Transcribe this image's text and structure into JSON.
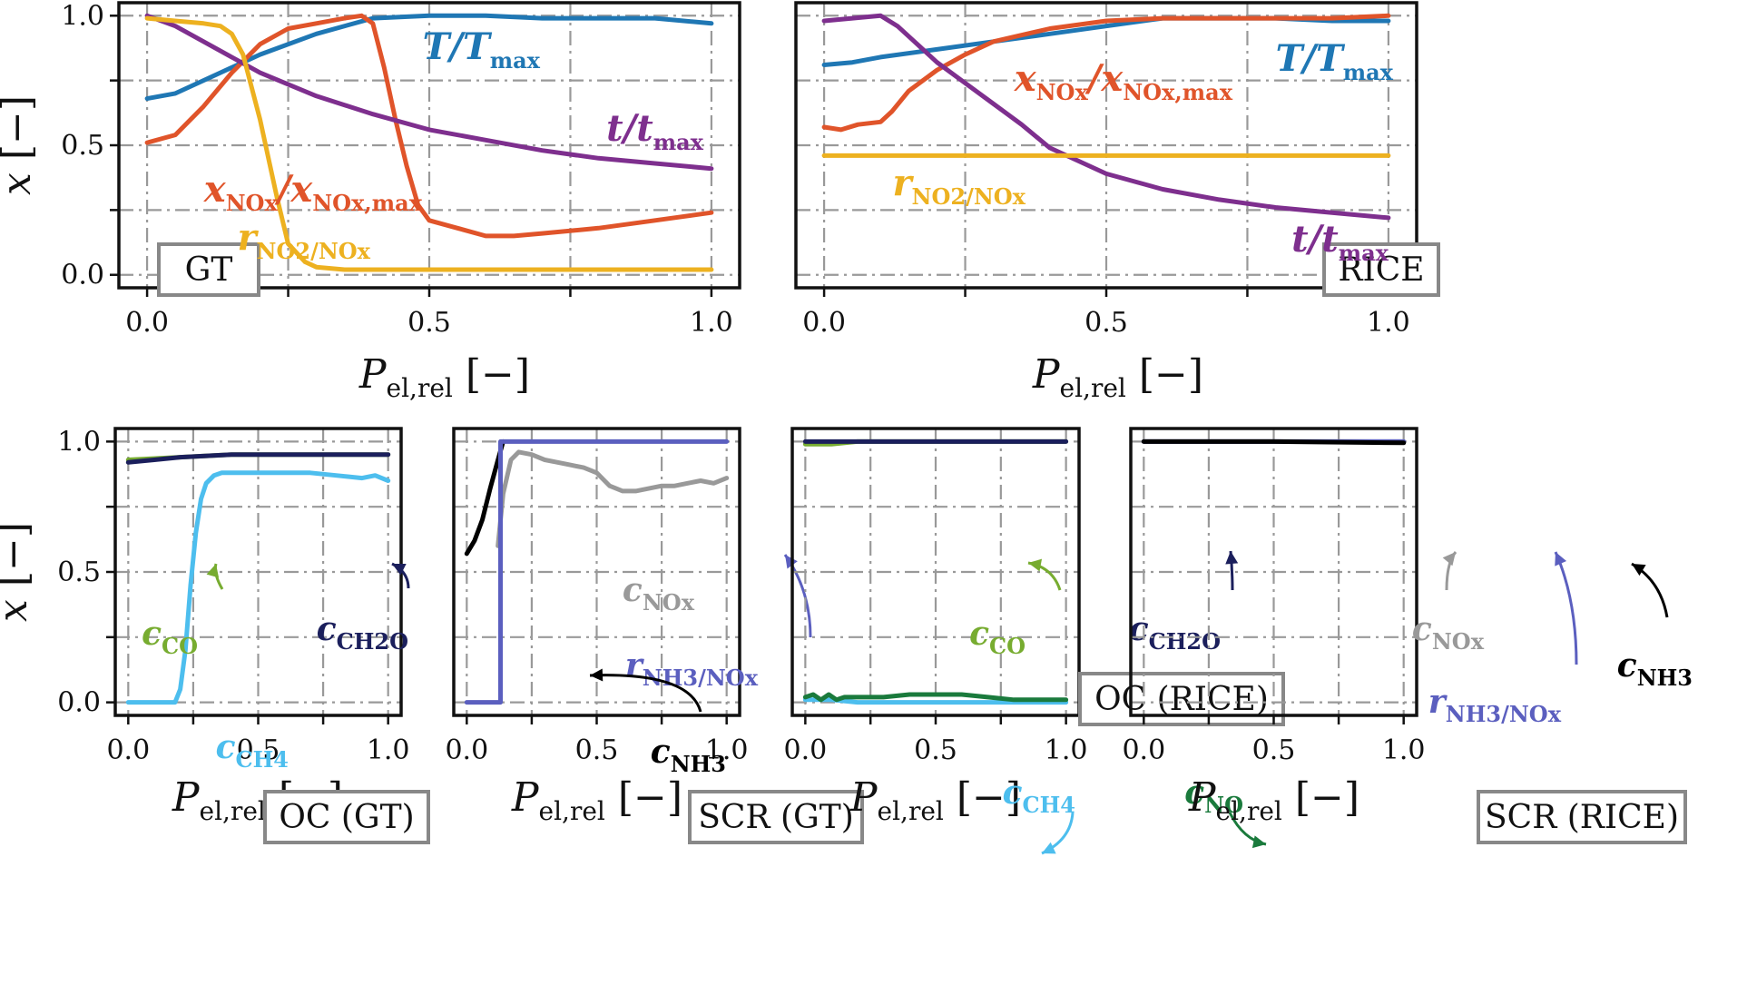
{
  "colors": {
    "T": "#1f77b4",
    "NOx": "#e0542a",
    "t": "#7e2f8e",
    "rNO2": "#edb120",
    "cCO": "#77ac30",
    "cCH2O": "#1b1f5c",
    "cCH4": "#4dbeee",
    "NH3": "#000000",
    "cNOx": "#999999",
    "rNH3": "#5b5fbf",
    "cNO": "#1a7a3c"
  },
  "axes": {
    "xlabel_main": "P",
    "xlabel_sub": "el,rel",
    "xlabel_unit": "[−]",
    "ylabel_main": "x",
    "ylabel_unit": "[−]",
    "xticks": [
      "0.0",
      "0.5",
      "1.0"
    ],
    "yticks": [
      "0.0",
      "0.5",
      "1.0"
    ]
  },
  "chart_data": [
    {
      "type": "line",
      "panel": "GT",
      "xlim": [
        -0.05,
        1.05
      ],
      "ylim": [
        -0.05,
        1.05
      ],
      "grid": true,
      "box_label": "GT",
      "series": [
        {
          "key": "T",
          "name_main": "T/T",
          "name_sub": "max",
          "x": [
            0,
            0.05,
            0.1,
            0.2,
            0.3,
            0.4,
            0.5,
            0.6,
            0.7,
            0.8,
            0.9,
            1.0
          ],
          "y": [
            0.68,
            0.7,
            0.75,
            0.85,
            0.93,
            0.99,
            1.0,
            1.0,
            0.99,
            0.99,
            0.99,
            0.97
          ]
        },
        {
          "key": "NOx",
          "name_main": "x",
          "name_sub": "NOx",
          "name_tail": "/x",
          "name_sub2": "NOx,max",
          "x": [
            0,
            0.05,
            0.1,
            0.15,
            0.2,
            0.25,
            0.3,
            0.35,
            0.38,
            0.4,
            0.42,
            0.44,
            0.46,
            0.48,
            0.5,
            0.55,
            0.6,
            0.65,
            0.7,
            0.8,
            0.9,
            1.0
          ],
          "y": [
            0.51,
            0.54,
            0.65,
            0.78,
            0.89,
            0.95,
            0.97,
            0.99,
            1.0,
            0.97,
            0.8,
            0.6,
            0.42,
            0.27,
            0.21,
            0.18,
            0.15,
            0.15,
            0.16,
            0.18,
            0.21,
            0.24
          ]
        },
        {
          "key": "t",
          "name_main": "t/t",
          "name_sub": "max",
          "x": [
            0,
            0.05,
            0.1,
            0.2,
            0.3,
            0.4,
            0.5,
            0.6,
            0.7,
            0.8,
            0.9,
            1.0
          ],
          "y": [
            1.0,
            0.96,
            0.9,
            0.78,
            0.69,
            0.62,
            0.56,
            0.52,
            0.48,
            0.45,
            0.43,
            0.41
          ]
        },
        {
          "key": "rNO2",
          "name_main": "r",
          "name_sub": "NO2/NOx",
          "x": [
            0,
            0.05,
            0.1,
            0.13,
            0.15,
            0.17,
            0.2,
            0.23,
            0.25,
            0.28,
            0.3,
            0.35,
            0.4,
            0.5,
            0.6,
            0.7,
            0.8,
            0.9,
            1.0
          ],
          "y": [
            0.99,
            0.98,
            0.97,
            0.96,
            0.93,
            0.85,
            0.6,
            0.3,
            0.12,
            0.05,
            0.03,
            0.02,
            0.02,
            0.02,
            0.02,
            0.02,
            0.02,
            0.02,
            0.02
          ]
        }
      ]
    },
    {
      "type": "line",
      "panel": "RICE",
      "xlim": [
        -0.05,
        1.05
      ],
      "ylim": [
        -0.05,
        1.05
      ],
      "grid": true,
      "box_label": "RICE",
      "series": [
        {
          "key": "T",
          "name_main": "T/T",
          "name_sub": "max",
          "x": [
            0,
            0.05,
            0.1,
            0.2,
            0.3,
            0.4,
            0.5,
            0.6,
            0.7,
            0.8,
            0.9,
            1.0
          ],
          "y": [
            0.81,
            0.82,
            0.84,
            0.87,
            0.9,
            0.93,
            0.96,
            0.99,
            0.99,
            0.99,
            0.98,
            0.98
          ]
        },
        {
          "key": "NOx",
          "name_main": "x",
          "name_sub": "NOx",
          "name_tail": "/x",
          "name_sub2": "NOx,max",
          "x": [
            0,
            0.03,
            0.06,
            0.1,
            0.12,
            0.15,
            0.2,
            0.25,
            0.3,
            0.4,
            0.5,
            0.6,
            0.7,
            0.8,
            0.9,
            1.0
          ],
          "y": [
            0.57,
            0.56,
            0.58,
            0.59,
            0.63,
            0.71,
            0.79,
            0.85,
            0.9,
            0.95,
            0.98,
            0.99,
            0.99,
            0.99,
            0.99,
            1.0
          ]
        },
        {
          "key": "t",
          "name_main": "t/t",
          "name_sub": "max",
          "x": [
            0,
            0.05,
            0.1,
            0.13,
            0.16,
            0.2,
            0.25,
            0.3,
            0.35,
            0.4,
            0.5,
            0.6,
            0.7,
            0.8,
            0.9,
            1.0
          ],
          "y": [
            0.98,
            0.99,
            1.0,
            0.96,
            0.9,
            0.82,
            0.74,
            0.66,
            0.58,
            0.49,
            0.39,
            0.33,
            0.29,
            0.26,
            0.24,
            0.22
          ]
        },
        {
          "key": "rNO2",
          "name_main": "r",
          "name_sub": "NO2/NOx",
          "x": [
            0,
            0.2,
            0.4,
            0.6,
            0.8,
            1.0
          ],
          "y": [
            0.46,
            0.46,
            0.46,
            0.46,
            0.46,
            0.46
          ]
        }
      ]
    },
    {
      "type": "line",
      "panel": "OC (GT)",
      "xlim": [
        -0.05,
        1.05
      ],
      "ylim": [
        -0.05,
        1.05
      ],
      "grid": true,
      "box_label": "OC (GT)",
      "series": [
        {
          "key": "cCO",
          "name_main": "c",
          "name_sub": "CO",
          "x": [
            0,
            0.2,
            0.4,
            0.6,
            0.8,
            1.0
          ],
          "y": [
            0.93,
            0.94,
            0.95,
            0.95,
            0.95,
            0.95
          ]
        },
        {
          "key": "cCH2O",
          "name_main": "c",
          "name_sub": "CH2O",
          "x": [
            0,
            0.1,
            0.2,
            0.4,
            0.6,
            0.8,
            1.0
          ],
          "y": [
            0.92,
            0.93,
            0.94,
            0.95,
            0.95,
            0.95,
            0.95
          ]
        },
        {
          "key": "cCH4",
          "name_main": "c",
          "name_sub": "CH4",
          "x": [
            0,
            0.1,
            0.18,
            0.2,
            0.22,
            0.24,
            0.26,
            0.28,
            0.3,
            0.33,
            0.36,
            0.4,
            0.5,
            0.6,
            0.7,
            0.8,
            0.9,
            0.95,
            1.0
          ],
          "y": [
            0,
            0,
            0.0,
            0.05,
            0.2,
            0.45,
            0.65,
            0.78,
            0.84,
            0.87,
            0.88,
            0.88,
            0.88,
            0.88,
            0.88,
            0.87,
            0.86,
            0.87,
            0.85
          ]
        }
      ]
    },
    {
      "type": "line",
      "panel": "SCR (GT)",
      "xlim": [
        -0.05,
        1.05
      ],
      "ylim": [
        -0.05,
        1.05
      ],
      "grid": true,
      "box_label": "SCR (GT)",
      "series": [
        {
          "key": "NH3",
          "name_main": "c",
          "name_sub": "NH3",
          "x": [
            0,
            0.03,
            0.06,
            0.09,
            0.12,
            0.14
          ],
          "y": [
            0.57,
            0.62,
            0.7,
            0.82,
            0.93,
            1.0
          ]
        },
        {
          "key": "cNOx",
          "name_main": "c",
          "name_sub": "NOx",
          "x": [
            0.12,
            0.14,
            0.17,
            0.2,
            0.25,
            0.3,
            0.35,
            0.4,
            0.45,
            0.5,
            0.55,
            0.6,
            0.65,
            0.7,
            0.75,
            0.8,
            0.85,
            0.9,
            0.95,
            1.0
          ],
          "y": [
            0.6,
            0.8,
            0.93,
            0.96,
            0.95,
            0.93,
            0.92,
            0.91,
            0.9,
            0.88,
            0.83,
            0.81,
            0.81,
            0.82,
            0.83,
            0.83,
            0.84,
            0.85,
            0.84,
            0.86
          ]
        },
        {
          "key": "rNH3",
          "name_main": "r",
          "name_sub": "NH3/NOx",
          "x": [
            0,
            0.13,
            0.13,
            1.0
          ],
          "y": [
            0,
            0,
            1.0,
            1.0
          ]
        }
      ]
    },
    {
      "type": "line",
      "panel": "OC (RICE)",
      "xlim": [
        -0.05,
        1.05
      ],
      "ylim": [
        -0.05,
        1.05
      ],
      "grid": true,
      "box_label": "OC (RICE)",
      "series": [
        {
          "key": "cCO",
          "name_main": "c",
          "name_sub": "CO",
          "x": [
            0,
            0.1,
            0.2,
            0.4,
            0.6,
            0.8,
            1.0
          ],
          "y": [
            0.99,
            0.99,
            1.0,
            1.0,
            1.0,
            1.0,
            1.0
          ]
        },
        {
          "key": "cCH2O",
          "name_main": "c",
          "name_sub": "CH2O",
          "x": [
            0,
            0.2,
            0.4,
            0.6,
            0.8,
            1.0
          ],
          "y": [
            1.0,
            1.0,
            1.0,
            1.0,
            1.0,
            1.0
          ]
        },
        {
          "key": "cCH4",
          "name_main": "c",
          "name_sub": "CH4",
          "x": [
            0,
            0.1,
            0.2,
            0.4,
            0.6,
            0.8,
            1.0
          ],
          "y": [
            0.01,
            0.01,
            0.0,
            0.0,
            0.0,
            0.0,
            0.0
          ]
        },
        {
          "key": "cNO",
          "name_main": "c",
          "name_sub": "NO",
          "x": [
            0,
            0.03,
            0.06,
            0.09,
            0.12,
            0.15,
            0.2,
            0.3,
            0.4,
            0.5,
            0.6,
            0.7,
            0.8,
            0.9,
            1.0
          ],
          "y": [
            0.02,
            0.03,
            0.01,
            0.03,
            0.01,
            0.02,
            0.02,
            0.02,
            0.03,
            0.03,
            0.03,
            0.02,
            0.01,
            0.01,
            0.01
          ]
        }
      ]
    },
    {
      "type": "line",
      "panel": "SCR (RICE)",
      "xlim": [
        -0.05,
        1.05
      ],
      "ylim": [
        -0.05,
        1.05
      ],
      "grid": true,
      "box_label": "SCR (RICE)",
      "series": [
        {
          "key": "cNOx",
          "name_main": "c",
          "name_sub": "NOx",
          "x": [
            0,
            0.5,
            1.0
          ],
          "y": [
            1.0,
            1.0,
            1.0
          ]
        },
        {
          "key": "rNH3",
          "name_main": "r",
          "name_sub": "NH3/NOx",
          "x": [
            0,
            0.5,
            1.0
          ],
          "y": [
            1.0,
            1.0,
            1.0
          ]
        },
        {
          "key": "NH3",
          "name_main": "c",
          "name_sub": "NH3",
          "x": [
            0,
            0.5,
            1.0
          ],
          "y": [
            1.0,
            1.0,
            0.995
          ]
        }
      ]
    }
  ]
}
